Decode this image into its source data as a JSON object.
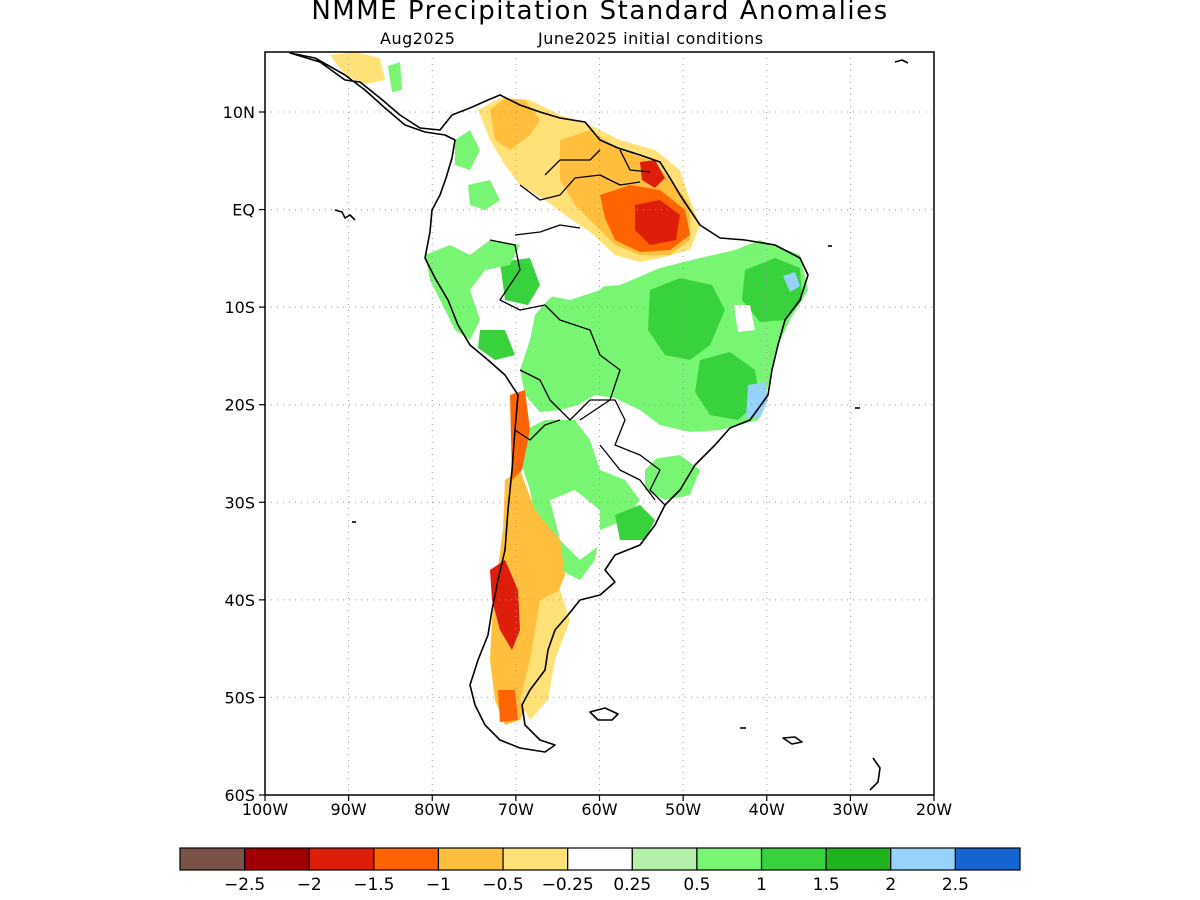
{
  "title": "NMME Precipitation Standard Anomalies",
  "subtitle_left": "Aug2025",
  "subtitle_right": "June2025 initial conditions",
  "map": {
    "lon_range": [
      -100,
      -20
    ],
    "lat_range": [
      -60,
      16
    ],
    "grid": "dotted",
    "lat_ticks": [
      {
        "value": 10,
        "label": "10N"
      },
      {
        "value": 0,
        "label": "EQ"
      },
      {
        "value": -10,
        "label": "10S"
      },
      {
        "value": -20,
        "label": "20S"
      },
      {
        "value": -30,
        "label": "30S"
      },
      {
        "value": -40,
        "label": "40S"
      },
      {
        "value": -50,
        "label": "50S"
      },
      {
        "value": -60,
        "label": "60S"
      }
    ],
    "lon_ticks": [
      {
        "value": -100,
        "label": "100W"
      },
      {
        "value": -90,
        "label": "90W"
      },
      {
        "value": -80,
        "label": "80W"
      },
      {
        "value": -70,
        "label": "70W"
      },
      {
        "value": -60,
        "label": "60W"
      },
      {
        "value": -50,
        "label": "50W"
      },
      {
        "value": -40,
        "label": "40W"
      },
      {
        "value": -30,
        "label": "30W"
      },
      {
        "value": -20,
        "label": "20W"
      }
    ]
  },
  "colorbar": {
    "colors": [
      "#7b5247",
      "#a00000",
      "#dc1e0a",
      "#ff6400",
      "#ffbe3c",
      "#ffe178",
      "#ffffff",
      "#b4f0aa",
      "#78f573",
      "#37d23c",
      "#1eb41e",
      "#96d2fa",
      "#1464d2"
    ],
    "labels": [
      "-2.5",
      "-2",
      "-1.5",
      "-1",
      "-0.5",
      "-0.25",
      "0.25",
      "0.5",
      "1",
      "1.5",
      "2",
      "2.5"
    ]
  },
  "anomaly_regions": [
    {
      "region": "Northeast Brazil / central Brazil",
      "level": "1 to 1.5"
    },
    {
      "region": "Eastern Brazil coast",
      "level": "2 to 2.5"
    },
    {
      "region": "Eastern Amazon / Amapa",
      "level": "-2 to -1.5"
    },
    {
      "region": "Guiana highlands / Venezuela",
      "level": "-1 to -0.25"
    },
    {
      "region": "Southern Andes / Chile",
      "level": "-2 to -1"
    },
    {
      "region": "Patagonia",
      "level": "-1 to -0.25"
    },
    {
      "region": "Northern Argentina / Paraguay",
      "level": "0.5 to 1"
    },
    {
      "region": "Western Amazon / Peru",
      "level": "0.5 to 1.5"
    }
  ]
}
